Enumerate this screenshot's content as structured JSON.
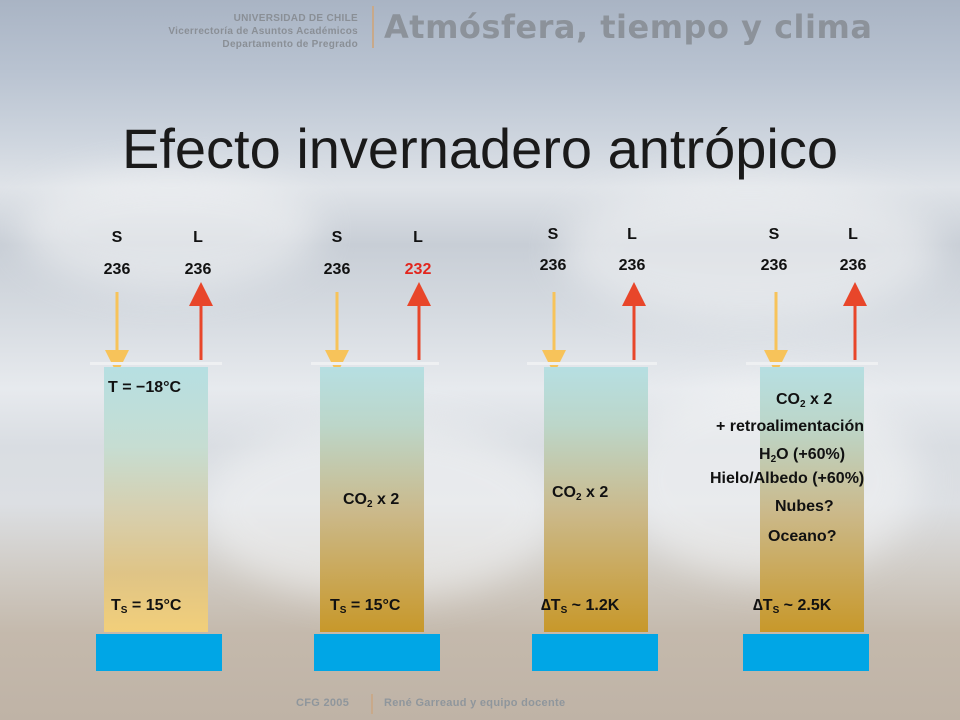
{
  "header": {
    "university": "UNIVERSIDAD DE CHILE",
    "vicerrectoria": "Vicerrectoría de Asuntos Académicos",
    "departamento": "Departamento de Pregrado",
    "course": "Atmósfera, tiempo y clima"
  },
  "title": "Efecto invernadero antrópico",
  "colors": {
    "incoming_arrow": "#f7c35a",
    "outgoing_arrow": "#e8462a",
    "surface": "#00a6e6",
    "highlight": "#e2261e"
  },
  "columns": [
    {
      "s_label": "S",
      "l_label": "L",
      "s_value": "236",
      "l_value": "236",
      "top_text": "T = −18°C",
      "surface_text_prefix": "T",
      "surface_text_sub": "S",
      "surface_text_suffix": " = 15°C"
    },
    {
      "s_label": "S",
      "l_label": "L",
      "s_value": "236",
      "l_value": "232",
      "mid_prefix": "CO",
      "mid_sub": "2",
      "mid_suffix": " x 2",
      "surface_text_prefix": "T",
      "surface_text_sub": "S",
      "surface_text_suffix": " = 15°C"
    },
    {
      "s_label": "S",
      "l_label": "L",
      "s_value": "236",
      "l_value": "236",
      "mid_prefix": "CO",
      "mid_sub": "2",
      "mid_suffix": " x 2",
      "surface_text_prefix": "∆T",
      "surface_text_sub": "S",
      "surface_text_suffix": " ~ 1.2K"
    },
    {
      "s_label": "S",
      "l_label": "L",
      "s_value": "236",
      "l_value": "236",
      "line1_prefix": "CO",
      "line1_sub": "2",
      "line1_suffix": " x 2",
      "line2": "+ retroalimentación",
      "line3_prefix": "H",
      "line3_sub": "2",
      "line3_suffix": "O (+60%)",
      "line4": "Hielo/Albedo (+60%)",
      "line5": "Nubes?",
      "line6": "Oceano?",
      "surface_text_prefix": "∆T",
      "surface_text_sub": "S",
      "surface_text_suffix": " ~ 2.5K"
    }
  ],
  "footer": {
    "left": "CFG 2005",
    "right": "René Garreaud y equipo docente"
  }
}
